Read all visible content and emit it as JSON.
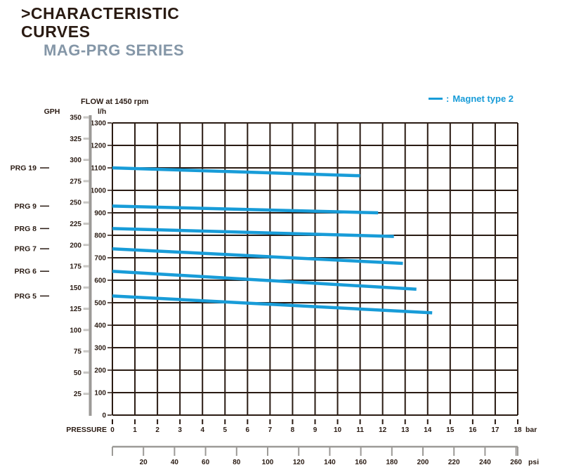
{
  "header": {
    "title_line1": ">CHARACTERISTIC",
    "title_line2": "CURVES",
    "subtitle": "MAG-PRG SERIES"
  },
  "legend": {
    "separator": ":",
    "label": "Magnet type 2"
  },
  "colors": {
    "accent": "#189CD8",
    "ink": "#2A1B13",
    "subtitle": "#8496A7",
    "ruler": "#9C9A97",
    "ruler_tick": "#CFCDCA"
  },
  "chart_data": {
    "type": "line",
    "title": "FLOW at 1450 rpm",
    "grid": true,
    "x_axis": {
      "label": "PRESSURE",
      "unit": "bar",
      "min": 0,
      "max": 18,
      "ticks": [
        0,
        1,
        2,
        3,
        4,
        5,
        6,
        7,
        8,
        9,
        10,
        11,
        12,
        13,
        14,
        15,
        16,
        17,
        18
      ],
      "secondary_unit": "psi",
      "secondary_ticks": [
        20,
        40,
        60,
        80,
        100,
        120,
        140,
        160,
        180,
        200,
        220,
        240,
        260
      ]
    },
    "y_axis": {
      "unit": "l/h",
      "min": 0,
      "max": 1300,
      "ticks": [
        1300,
        1200,
        1100,
        1000,
        900,
        800,
        700,
        600,
        500,
        400,
        300,
        200,
        100,
        0
      ],
      "secondary_unit": "GPH",
      "secondary_ticks": [
        350,
        325,
        300,
        275,
        250,
        225,
        200,
        175,
        150,
        125,
        100,
        75,
        50,
        25
      ]
    },
    "series": [
      {
        "name": "PRG 19",
        "points": [
          [
            0,
            1100
          ],
          [
            11,
            1065
          ]
        ]
      },
      {
        "name": "PRG 9",
        "points": [
          [
            0,
            930
          ],
          [
            11.8,
            900
          ]
        ]
      },
      {
        "name": "PRG 8",
        "points": [
          [
            0,
            830
          ],
          [
            12.5,
            795
          ]
        ]
      },
      {
        "name": "PRG 7",
        "points": [
          [
            0,
            740
          ],
          [
            12.9,
            675
          ]
        ]
      },
      {
        "name": "PRG 6",
        "points": [
          [
            0,
            640
          ],
          [
            13.5,
            560
          ]
        ]
      },
      {
        "name": "PRG 5",
        "points": [
          [
            0,
            530
          ],
          [
            14.2,
            455
          ]
        ]
      }
    ]
  }
}
